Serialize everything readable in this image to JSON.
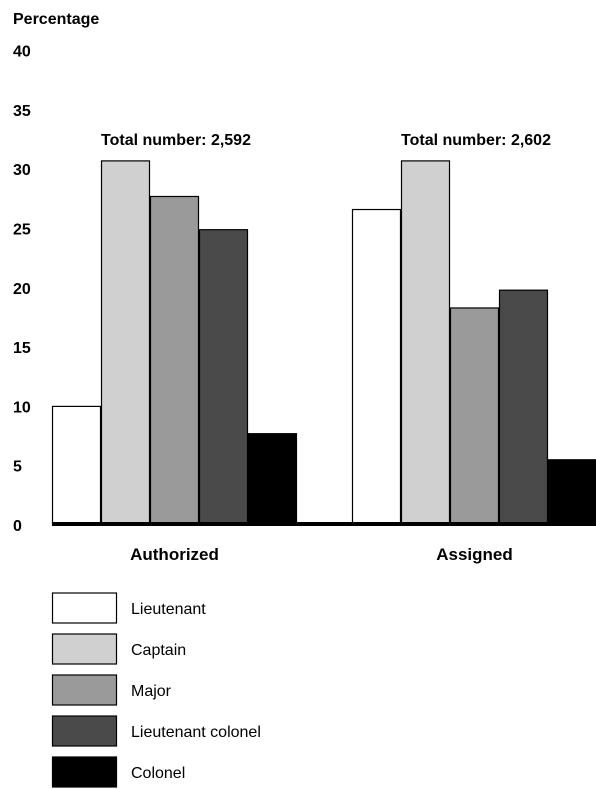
{
  "chart_data": {
    "type": "bar",
    "ylabel": "Percentage",
    "xlabel": "",
    "ylim": [
      0,
      40
    ],
    "yticks": [
      0,
      5,
      10,
      15,
      20,
      25,
      30,
      35,
      40
    ],
    "grid": false,
    "legend_position": "bottom",
    "categories": [
      "Authorized",
      "Assigned"
    ],
    "group_totals": [
      "Total number: 2,592",
      "Total number: 2,602"
    ],
    "series": [
      {
        "name": "Lieutenant",
        "color": "#ffffff",
        "values": [
          10.0,
          26.6
        ]
      },
      {
        "name": "Captain",
        "color": "#d0d0d0",
        "values": [
          30.7,
          30.7
        ]
      },
      {
        "name": "Major",
        "color": "#9a9a9a",
        "values": [
          27.7,
          18.3
        ]
      },
      {
        "name": "Lieutenant colonel",
        "color": "#4a4a4a",
        "values": [
          24.9,
          19.8
        ]
      },
      {
        "name": "Colonel",
        "color": "#000000",
        "values": [
          7.7,
          5.5
        ]
      }
    ]
  }
}
